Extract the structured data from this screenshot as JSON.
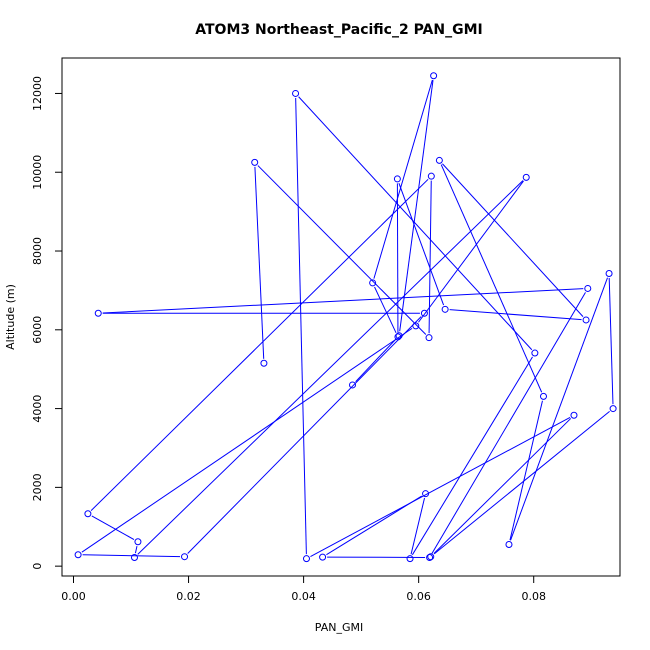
{
  "chart_data": {
    "type": "line",
    "title": "ATOM3 Northeast_Pacific_2 PAN_GMI",
    "xlabel": "PAN_GMI",
    "ylabel": "Altitude (m)",
    "xlim": [
      -0.002,
      0.095
    ],
    "ylim": [
      -250,
      12900
    ],
    "x_ticks": [
      0.0,
      0.02,
      0.04,
      0.06,
      0.08
    ],
    "x_tick_labels": [
      "0.00",
      "0.02",
      "0.04",
      "0.06",
      "0.08"
    ],
    "y_ticks": [
      0,
      2000,
      4000,
      6000,
      8000,
      10000,
      12000
    ],
    "y_tick_labels": [
      "0",
      "2000",
      "4000",
      "6000",
      "8000",
      "10000",
      "12000"
    ],
    "grid": false,
    "series": [
      {
        "color": "#0000ff",
        "marker": "open-circle",
        "x": [
          0.0331,
          0.0315,
          0.0618,
          0.0622,
          0.0025,
          0.0112,
          0.0106,
          0.0787,
          0.0595,
          0.0008,
          0.0193,
          0.061,
          0.0043,
          0.0894,
          0.0619,
          0.0433,
          0.0612,
          0.0585,
          0.0802,
          0.0386,
          0.0405,
          0.087,
          0.0621,
          0.0938,
          0.0931,
          0.0757,
          0.0817,
          0.0636,
          0.0891,
          0.0646,
          0.0563,
          0.0564,
          0.052,
          0.0626,
          0.0566,
          0.0485
        ],
        "y": [
          5150,
          10250,
          5800,
          9900,
          1330,
          620,
          220,
          9870,
          6100,
          290,
          240,
          6420,
          6420,
          7050,
          220,
          230,
          1840,
          190,
          5410,
          12000,
          190,
          3830,
          240,
          4000,
          7430,
          550,
          4310,
          10300,
          6250,
          6520,
          9830,
          5820,
          7190,
          12450,
          5850,
          4600
        ]
      }
    ]
  }
}
